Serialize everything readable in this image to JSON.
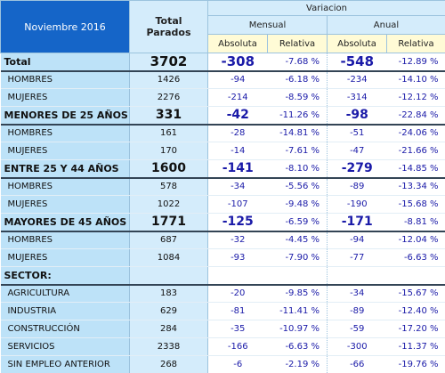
{
  "header": {
    "period": "Noviembre 2016",
    "total": "Total Parados",
    "variation": "Variacion",
    "monthly": "Mensual",
    "annual": "Anual",
    "absolute_m": "Absoluta",
    "relative_m": "Relativa",
    "absolute_a": "Absoluta",
    "relative_a": "Relativa"
  },
  "table": {
    "rows": [
      [
        "Total",
        "3702",
        "-308",
        "-7.68 %",
        "-548",
        "-12.89 %"
      ],
      [
        "HOMBRES",
        "1426",
        "-94",
        "-6.18 %",
        "-234",
        "-14.10 %"
      ],
      [
        "MUJERES",
        "2276",
        "-214",
        "-8.59 %",
        "-314",
        "-12.12 %"
      ],
      [
        "MENORES DE 25 AÑOS:",
        "331",
        "-42",
        "-11.26 %",
        "-98",
        "-22.84 %"
      ],
      [
        "HOMBRES",
        "161",
        "-28",
        "-14.81 %",
        "-51",
        "-24.06 %"
      ],
      [
        "MUJERES",
        "170",
        "-14",
        "-7.61 %",
        "-47",
        "-21.66 %"
      ],
      [
        "ENTRE 25 Y 44 AÑOS",
        "1600",
        "-141",
        "-8.10 %",
        "-279",
        "-14.85 %"
      ],
      [
        "HOMBRES",
        "578",
        "-34",
        "-5.56 %",
        "-89",
        "-13.34 %"
      ],
      [
        "MUJERES",
        "1022",
        "-107",
        "-9.48 %",
        "-190",
        "-15.68 %"
      ],
      [
        "MAYORES DE 45 AÑOS",
        "1771",
        "-125",
        "-6.59 %",
        "-171",
        "-8.81 %"
      ],
      [
        "HOMBRES",
        "687",
        "-32",
        "-4.45 %",
        "-94",
        "-12.04 %"
      ],
      [
        "MUJERES",
        "1084",
        "-93",
        "-7.90 %",
        "-77",
        "-6.63 %"
      ],
      [
        "SECTOR:"
      ],
      [
        "AGRICULTURA",
        "183",
        "-20",
        "-9.85 %",
        "-34",
        "-15.67 %"
      ],
      [
        "INDUSTRIA",
        "629",
        "-81",
        "-11.41 %",
        "-89",
        "-12.40 %"
      ],
      [
        "CONSTRUCCIÓN",
        "284",
        "-35",
        "-10.97 %",
        "-59",
        "-17.20 %"
      ],
      [
        "SERVICIOS",
        "2338",
        "-166",
        "-6.63 %",
        "-300",
        "-11.37 %"
      ],
      [
        "SIN EMPLEO ANTERIOR",
        "268",
        "-6",
        "-2.19 %",
        "-66",
        "-19.76 %"
      ]
    ]
  }
}
